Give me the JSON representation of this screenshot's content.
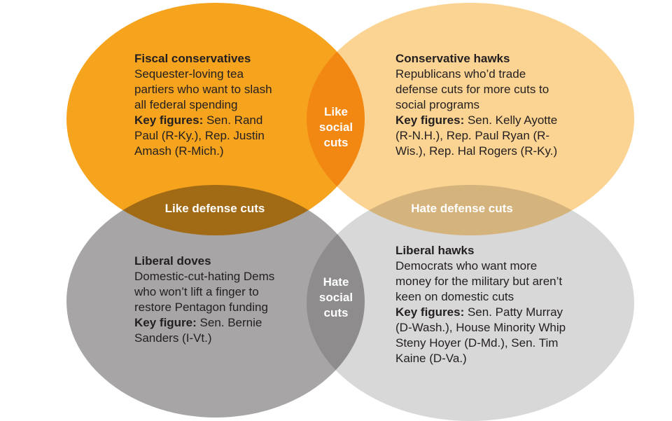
{
  "page": {
    "background": "#FFFFFF",
    "text_color": "#231F20",
    "overlap_label_color": "#FFFFFF"
  },
  "groups": {
    "fiscal_conservatives": {
      "color": "#F6A31E",
      "title": "Fiscal conservatives",
      "description": "Sequester-loving tea partiers who want to slash all federal spending",
      "key_label": "Key figures:",
      "key_figures": " Sen. Rand Paul (R-Ky.), Rep. Justin Amash (R-Mich.)"
    },
    "conservative_hawks": {
      "color": "#FBD392",
      "title": "Conservative hawks",
      "description": "Republicans who’d trade defense cuts for more cuts to social programs",
      "key_label": "Key figures:",
      "key_figures": " Sen. Kelly Ayotte (R-N.H.), Rep. Paul Ryan (R-Wis.), Rep. Hal Rogers (R-Ky.)"
    },
    "liberal_doves": {
      "color": "#A7A5A6",
      "title": "Liberal doves",
      "description": "Domestic-cut-hating Dems who won’t lift a finger to restore Pentagon funding",
      "key_label": "Key figure:",
      "key_figures": " Sen. Bernie Sanders (I-Vt.)"
    },
    "liberal_hawks": {
      "color": "#D9D8D8",
      "title": "Liberal hawks",
      "description": "Democrats who want more money for the military but aren’t keen on domestic cuts",
      "key_label": "Key figures:",
      "key_figures": " Sen. Patty Murray (D-Wash.), House Minority Whip Steny Hoyer (D-Md.), Sen. Tim Kaine (D-Va.)"
    }
  },
  "overlaps": {
    "top": "Like social cuts",
    "left": "Like defense cuts",
    "right": "Hate defense cuts",
    "bottom": "Hate social cuts"
  }
}
